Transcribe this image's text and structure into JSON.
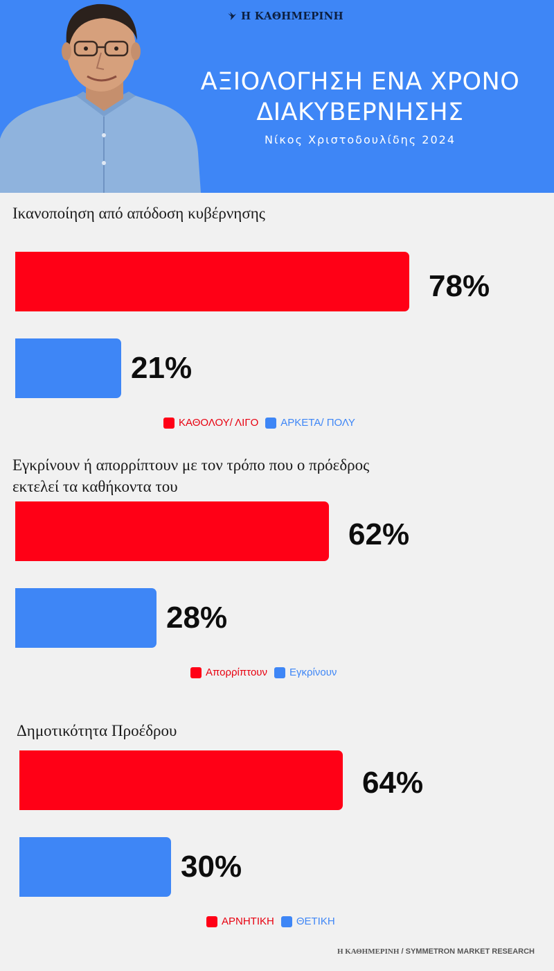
{
  "header": {
    "logo_text": "Η ΚΑΘΗΜΕΡΙΝΗ",
    "title_line1": "ΑΞΙΟΛΟΓΗΣΗ ΕΝΑ ΧΡΟΝΟ",
    "title_line2": "ΔΙΑΚΥΒΕΡΝΗΣΗΣ",
    "subtitle": "Νίκος Χριστοδουλίδης 2024",
    "background_color": "#3e86f6"
  },
  "colors": {
    "red": "#ff0016",
    "blue": "#3e86f6"
  },
  "chart_data": [
    {
      "type": "bar",
      "orientation": "horizontal",
      "title": "Ικανοποίηση από απόδοση κυβέρνησης",
      "categories": [
        "ΚΑΘΟΛΟΥ/ ΛΙΓΟ",
        "ΑΡΚΕΤΑ/ ΠΟΛΥ"
      ],
      "values": [
        78,
        21
      ],
      "value_labels": [
        "78%",
        "21%"
      ],
      "colors": [
        "#ff0016",
        "#3e86f6"
      ],
      "legend": [
        "ΚΑΘΟΛΟΥ/ ΛΙΓΟ",
        "ΑΡΚΕΤΑ/ ΠΟΛΥ"
      ],
      "legend_position": "bottom",
      "xlim": [
        0,
        100
      ],
      "grid": false
    },
    {
      "type": "bar",
      "orientation": "horizontal",
      "title_line1": "Εγκρίνουν ή απορρίπτουν με τον τρόπο που ο πρόεδρος",
      "title_line2": "εκτελεί τα καθήκοντα του",
      "categories": [
        "Απορρίπτουν",
        "Εγκρίνουν"
      ],
      "values": [
        62,
        28
      ],
      "value_labels": [
        "62%",
        "28%"
      ],
      "colors": [
        "#ff0016",
        "#3e86f6"
      ],
      "legend": [
        "Απορρίπτουν",
        "Εγκρίνουν"
      ],
      "legend_position": "bottom",
      "xlim": [
        0,
        100
      ],
      "grid": false
    },
    {
      "type": "bar",
      "orientation": "horizontal",
      "title": "Δημοτικότητα Προέδρου",
      "categories": [
        "ΑΡΝΗΤΙΚΗ",
        "ΘΕΤΙΚΗ"
      ],
      "values": [
        64,
        30
      ],
      "value_labels": [
        "64%",
        "30%"
      ],
      "colors": [
        "#ff0016",
        "#3e86f6"
      ],
      "legend": [
        "ΑΡΝΗΤΙΚΗ",
        "ΘΕΤΙΚΗ"
      ],
      "legend_position": "bottom",
      "xlim": [
        0,
        100
      ],
      "grid": false
    }
  ],
  "footer": {
    "publisher": "Η ΚΑΘΗΜΕΡΙΝΗ",
    "source": " / SYMMETRON MARKET RESEARCH"
  }
}
